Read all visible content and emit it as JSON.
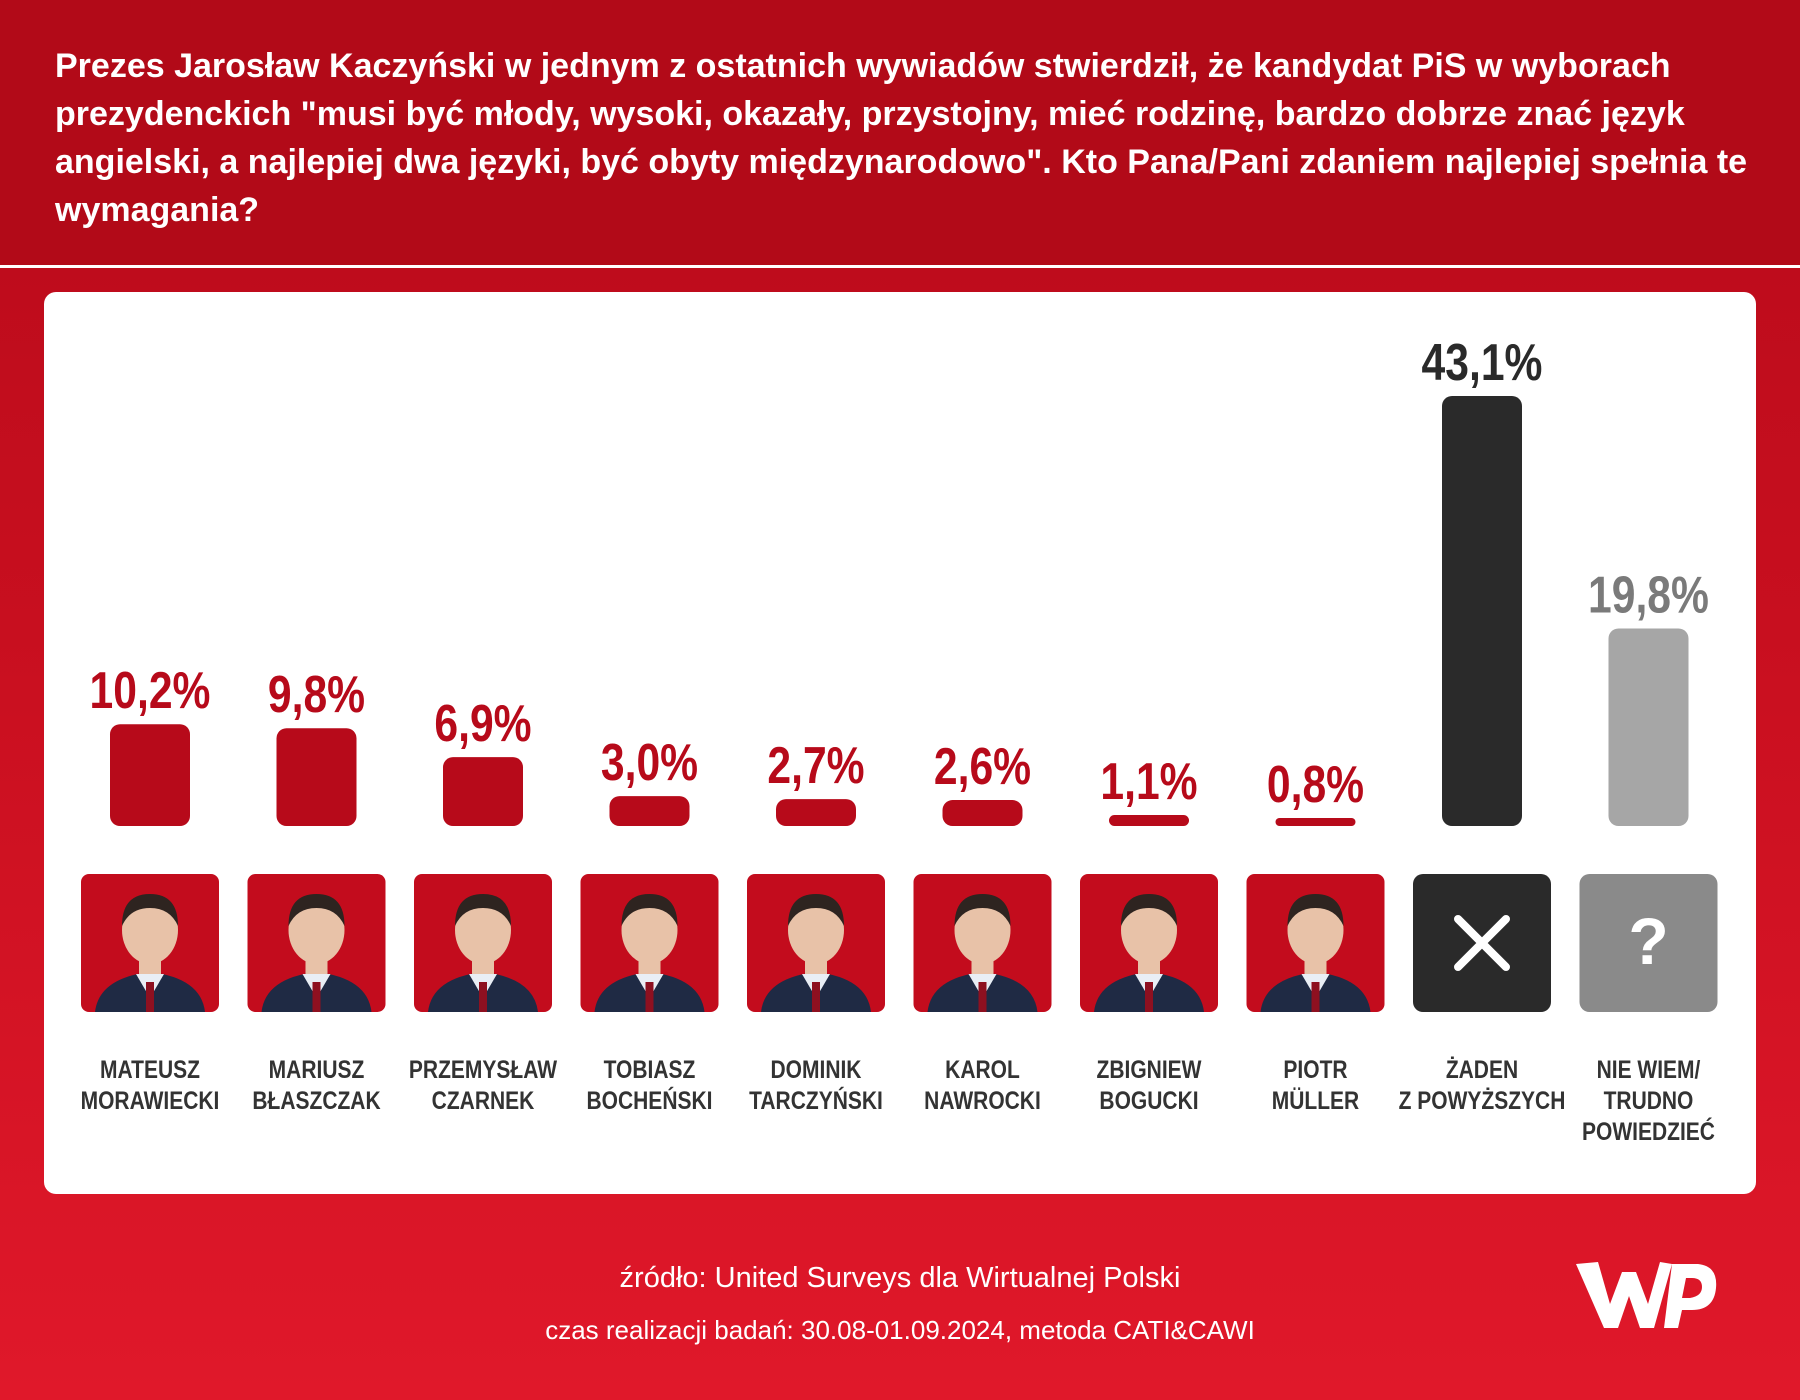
{
  "question": "Prezes Jarosław Kaczyński w jednym z ostatnich wywiadów stwierdził, że kandydat PiS w wyborach prezydenckich \"musi być młody, wysoki, okazały, przystojny, mieć rodzinę, bardzo dobrze znać język angielski, a najlepiej dwa języki, być obyty międzynarodowo\". Kto Pana/Pani zdaniem najlepiej spełnia te wymagania?",
  "footer": {
    "source": "źródło: United Surveys dla Wirtualnej Polski",
    "meta": "czas realizacji badań: 30.08-01.09.2024, metoda CATI&CAWI"
  },
  "logo": {
    "text": "WP",
    "icon": "wp-logo-icon"
  },
  "colors": {
    "candidate": "#b70a1a",
    "none": "#2a2a2a",
    "dont_know": "#a6a6a6",
    "dont_know_label": "#7a7a7a",
    "portrait_bg": "#c30c1d",
    "skin": "#e8c2a8",
    "suit": "#1f2a44"
  },
  "chart_data": {
    "type": "bar",
    "categories": [
      [
        "MATEUSZ",
        "MORAWIECKI"
      ],
      [
        "MARIUSZ",
        "BŁASZCZAK"
      ],
      [
        "PRZEMYSŁAW",
        "CZARNEK"
      ],
      [
        "TOBIASZ",
        "BOCHEŃSKI"
      ],
      [
        "DOMINIK",
        "TARCZYŃSKI"
      ],
      [
        "KAROL",
        "NAWROCKI"
      ],
      [
        "ZBIGNIEW",
        "BOGUCKI"
      ],
      [
        "PIOTR",
        "MÜLLER"
      ],
      [
        "ŻADEN",
        "Z POWYŻSZYCH"
      ],
      [
        "NIE WIEM/",
        "TRUDNO",
        "POWIEDZIEĆ"
      ]
    ],
    "values": [
      10.2,
      9.8,
      6.9,
      3.0,
      2.7,
      2.6,
      1.1,
      0.8,
      43.1,
      19.8
    ],
    "value_labels": [
      "10,2%",
      "9,8%",
      "6,9%",
      "3,0%",
      "2,7%",
      "2,6%",
      "1,1%",
      "0,8%",
      "43,1%",
      "19,8%"
    ],
    "bar_colors": [
      "#b70a1a",
      "#b70a1a",
      "#b70a1a",
      "#b70a1a",
      "#b70a1a",
      "#b70a1a",
      "#b70a1a",
      "#b70a1a",
      "#2a2a2a",
      "#a6a6a6"
    ],
    "label_colors": [
      "#b70a1a",
      "#b70a1a",
      "#b70a1a",
      "#b70a1a",
      "#b70a1a",
      "#b70a1a",
      "#b70a1a",
      "#b70a1a",
      "#2a2a2a",
      "#7a7a7a"
    ],
    "icons": [
      "portrait",
      "portrait",
      "portrait",
      "portrait",
      "portrait",
      "portrait",
      "portrait",
      "portrait",
      "close-icon",
      "question-icon"
    ],
    "ylim": [
      0,
      43.1
    ],
    "grid": false,
    "xlabel": "",
    "ylabel": ""
  }
}
